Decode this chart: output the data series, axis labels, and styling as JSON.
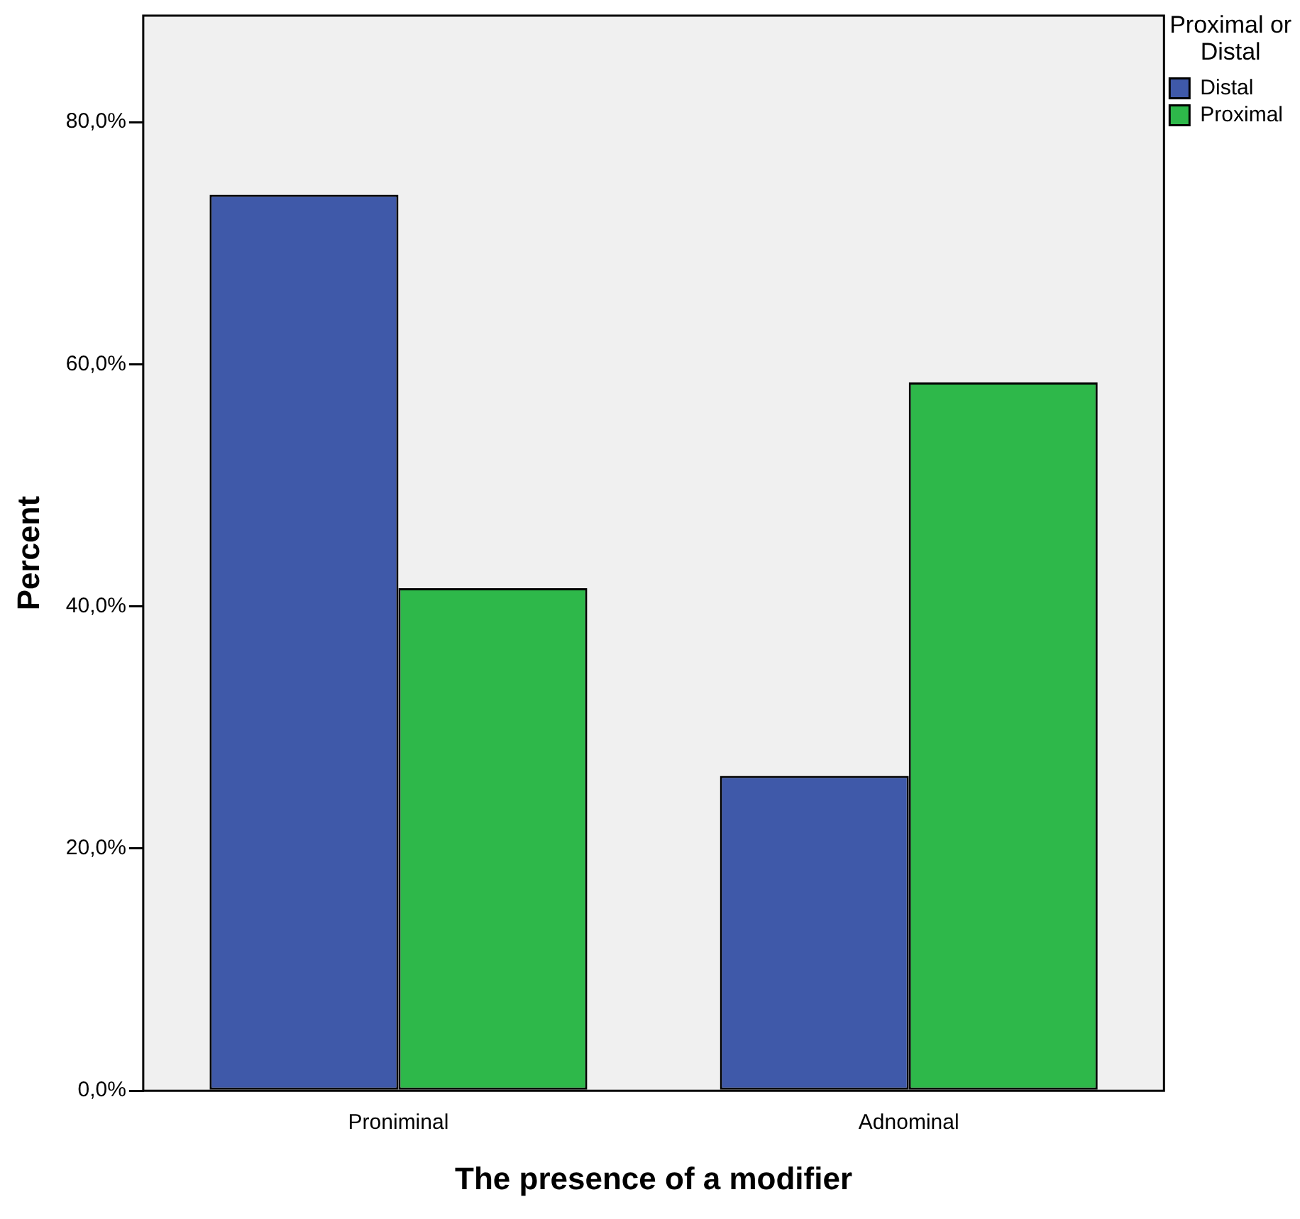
{
  "chart_data": {
    "type": "bar",
    "xlabel": "The presence of a modifier",
    "ylabel": "Percent",
    "legend_title": "Proximal or Distal",
    "legend": "top right",
    "grid": false,
    "categories": [
      "Proniminal",
      "Adnominal"
    ],
    "series": [
      {
        "name": "Distal",
        "color": "#3f59a9",
        "values": [
          74.0,
          26.0
        ]
      },
      {
        "name": "Proximal",
        "color": "#2eb84a",
        "values": [
          41.5,
          58.5
        ]
      }
    ],
    "ylim": [
      0,
      88.8
    ],
    "yticks": [
      {
        "value": 0,
        "label": "0,0%"
      },
      {
        "value": 20,
        "label": "20,0%"
      },
      {
        "value": 40,
        "label": "40,0%"
      },
      {
        "value": 60,
        "label": "60,0%"
      },
      {
        "value": 80,
        "label": "80,0%"
      }
    ]
  }
}
